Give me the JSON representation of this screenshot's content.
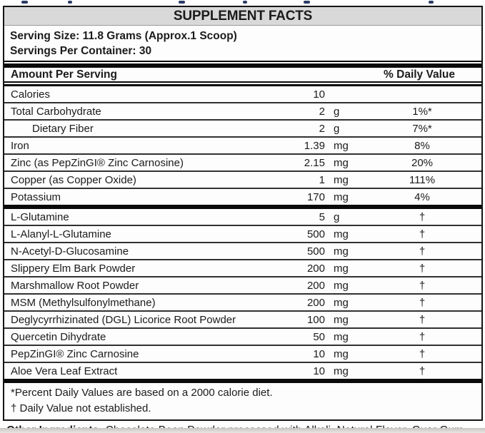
{
  "colors": {
    "band_gray": "#d9d9d9",
    "border_black": "#141414",
    "separator_gray": "#313131",
    "cropped_text_navy": "#2a3c66"
  },
  "header": {
    "title": "SUPPLEMENT FACTS",
    "serving_size": "Serving Size: 11.8 Grams (Approx.1 Scoop)",
    "servings_per_container": "Servings Per Container: 30"
  },
  "columns": {
    "amount": "Amount Per Serving",
    "daily_value": "% Daily Value"
  },
  "rows1": [
    {
      "name": "Calories",
      "amount": "10",
      "unit": "",
      "dv": ""
    },
    {
      "name": "Total Carbohydrate",
      "amount": "2",
      "unit": "g",
      "dv": "1%*"
    },
    {
      "name": "Dietary Fiber",
      "amount": "2",
      "unit": "g",
      "dv": "7%*"
    },
    {
      "name": "Iron",
      "amount": "1.39",
      "unit": "mg",
      "dv": "8%"
    },
    {
      "name": "Zinc (as PepZinGI® Zinc Carnosine)",
      "amount": "2.15",
      "unit": "mg",
      "dv": "20%"
    },
    {
      "name": "Copper (as Copper Oxide)",
      "amount": "1",
      "unit": "mg",
      "dv": "111%"
    },
    {
      "name": "Potassium",
      "amount": "170",
      "unit": "mg",
      "dv": "4%"
    }
  ],
  "rows2": [
    {
      "name": "L-Glutamine",
      "amount": "5",
      "unit": "g",
      "dv": "†"
    },
    {
      "name": "L-Alanyl-L-Glutamine",
      "amount": "500",
      "unit": "mg",
      "dv": "†"
    },
    {
      "name": "N-Acetyl-D-Glucosamine",
      "amount": "500",
      "unit": "mg",
      "dv": "†"
    },
    {
      "name": "Slippery Elm Bark Powder",
      "amount": "200",
      "unit": "mg",
      "dv": "†"
    },
    {
      "name": "Marshmallow Root Powder",
      "amount": "200",
      "unit": "mg",
      "dv": "†"
    },
    {
      "name": "MSM (Methylsulfonylmethane)",
      "amount": "200",
      "unit": "mg",
      "dv": "†"
    },
    {
      "name": "Deglycyrrhizinated (DGL) Licorice Root Powder",
      "amount": "100",
      "unit": "mg",
      "dv": "†"
    },
    {
      "name": "Quercetin Dihydrate",
      "amount": "50",
      "unit": "mg",
      "dv": "†"
    },
    {
      "name": "PepZinGI® Zinc Carnosine",
      "amount": "10",
      "unit": "mg",
      "dv": "†"
    },
    {
      "name": "Aloe Vera Leaf Extract",
      "amount": "10",
      "unit": "mg",
      "dv": "†"
    }
  ],
  "footnotes": {
    "percent": "*Percent Daily Values are based on a 2000 calorie diet.",
    "dagger": "† Daily Value not established."
  },
  "other_ingredients": {
    "label": "Other Ingredients:",
    "text": "Chocolate Bean Powder processed with Alkali, Natural Flavor, Guar Gum Powder, Inulin, Silicon Dioxide, Rebaudioside A (From Stevia Leaf Extract)."
  }
}
